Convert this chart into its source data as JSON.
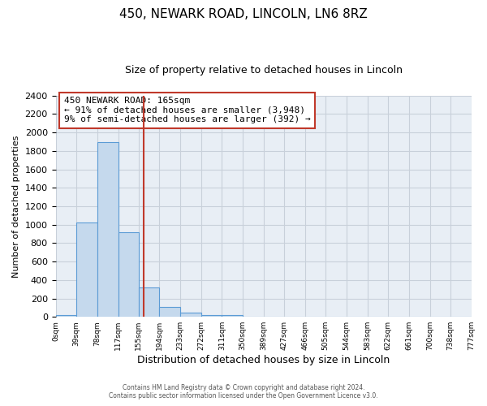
{
  "title": "450, NEWARK ROAD, LINCOLN, LN6 8RZ",
  "subtitle": "Size of property relative to detached houses in Lincoln",
  "xlabel": "Distribution of detached houses by size in Lincoln",
  "ylabel": "Number of detached properties",
  "bar_values": [
    20,
    1025,
    1900,
    920,
    320,
    105,
    50,
    20,
    20,
    0,
    0,
    0,
    0,
    0,
    0,
    0,
    0,
    0,
    0,
    0
  ],
  "bin_edges": [
    0,
    39,
    78,
    117,
    155,
    194,
    233,
    272,
    311,
    350,
    389,
    427,
    466,
    505,
    544,
    583,
    622,
    661,
    700,
    738,
    777
  ],
  "tick_labels": [
    "0sqm",
    "39sqm",
    "78sqm",
    "117sqm",
    "155sqm",
    "194sqm",
    "233sqm",
    "272sqm",
    "311sqm",
    "350sqm",
    "389sqm",
    "427sqm",
    "466sqm",
    "505sqm",
    "544sqm",
    "583sqm",
    "622sqm",
    "661sqm",
    "700sqm",
    "738sqm",
    "777sqm"
  ],
  "bar_color": "#c5d9ed",
  "bar_edge_color": "#5b9bd5",
  "vline_x": 165,
  "vline_color": "#c0392b",
  "ylim": [
    0,
    2400
  ],
  "yticks": [
    0,
    200,
    400,
    600,
    800,
    1000,
    1200,
    1400,
    1600,
    1800,
    2000,
    2200,
    2400
  ],
  "annotation_title": "450 NEWARK ROAD: 165sqm",
  "annotation_line1": "← 91% of detached houses are smaller (3,948)",
  "annotation_line2": "9% of semi-detached houses are larger (392) →",
  "footer1": "Contains HM Land Registry data © Crown copyright and database right 2024.",
  "footer2": "Contains public sector information licensed under the Open Government Licence v3.0.",
  "background_color": "#ffffff",
  "plot_bg_color": "#e8eef5",
  "grid_color": "#c8d0da",
  "title_fontsize": 11,
  "subtitle_fontsize": 9,
  "xlabel_fontsize": 9,
  "ylabel_fontsize": 8
}
